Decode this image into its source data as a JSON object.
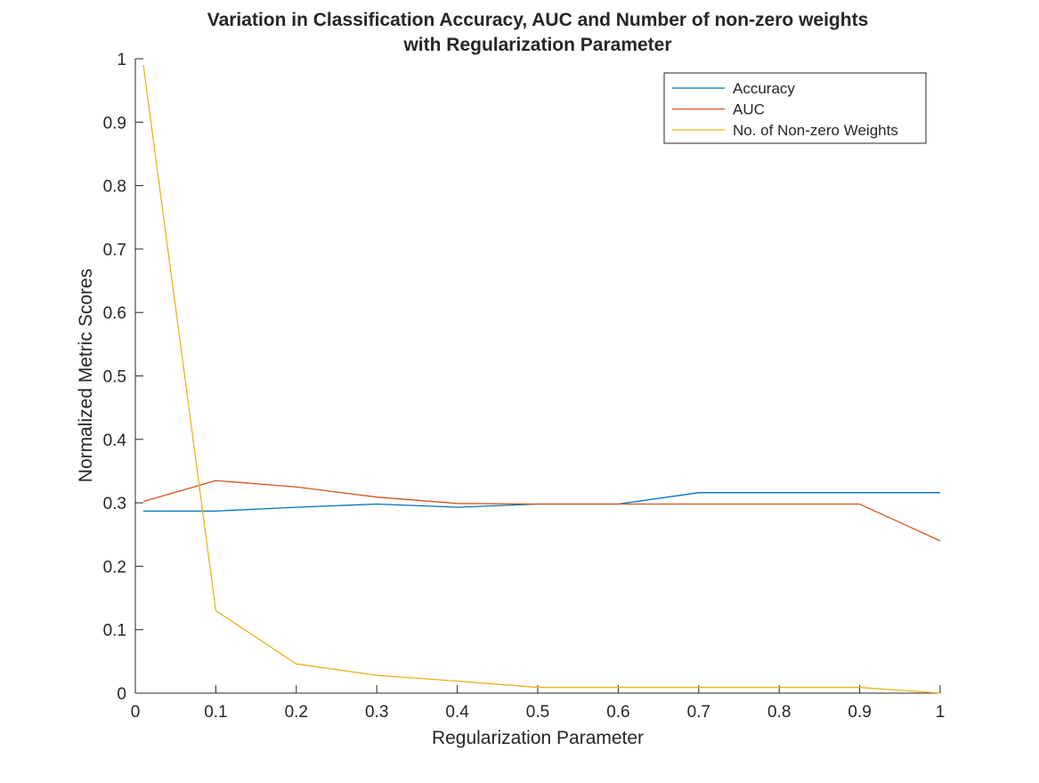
{
  "chart_data": {
    "type": "line",
    "title": [
      "Variation in Classification Accuracy, AUC and Number of non-zero weights",
      "with Regularization Parameter"
    ],
    "xlabel": "Regularization Parameter",
    "ylabel": "Normalized Metric Scores",
    "xlim": [
      0,
      1
    ],
    "ylim": [
      0,
      1
    ],
    "xticks": [
      "0",
      "0.1",
      "0.2",
      "0.3",
      "0.4",
      "0.5",
      "0.6",
      "0.7",
      "0.8",
      "0.9",
      "1"
    ],
    "yticks": [
      "0",
      "0.1",
      "0.2",
      "0.3",
      "0.4",
      "0.5",
      "0.6",
      "0.7",
      "0.8",
      "0.9",
      "1"
    ],
    "grid": false,
    "legend_position": "top-right",
    "x": [
      0.01,
      0.1,
      0.2,
      0.3,
      0.4,
      0.5,
      0.6,
      0.7,
      0.8,
      0.9,
      1.0
    ],
    "series": [
      {
        "name": "Accuracy",
        "color": "#0072BD",
        "values": [
          0.287,
          0.287,
          0.293,
          0.298,
          0.293,
          0.298,
          0.298,
          0.316,
          0.316,
          0.316,
          0.316
        ]
      },
      {
        "name": "AUC",
        "color": "#D95319",
        "values": [
          0.302,
          0.335,
          0.325,
          0.309,
          0.299,
          0.298,
          0.298,
          0.298,
          0.298,
          0.298,
          0.24
        ]
      },
      {
        "name": "No. of Non-zero Weights",
        "color": "#EDB120",
        "values": [
          0.99,
          0.13,
          0.046,
          0.028,
          0.019,
          0.009,
          0.009,
          0.009,
          0.009,
          0.009,
          0.0
        ]
      }
    ]
  }
}
